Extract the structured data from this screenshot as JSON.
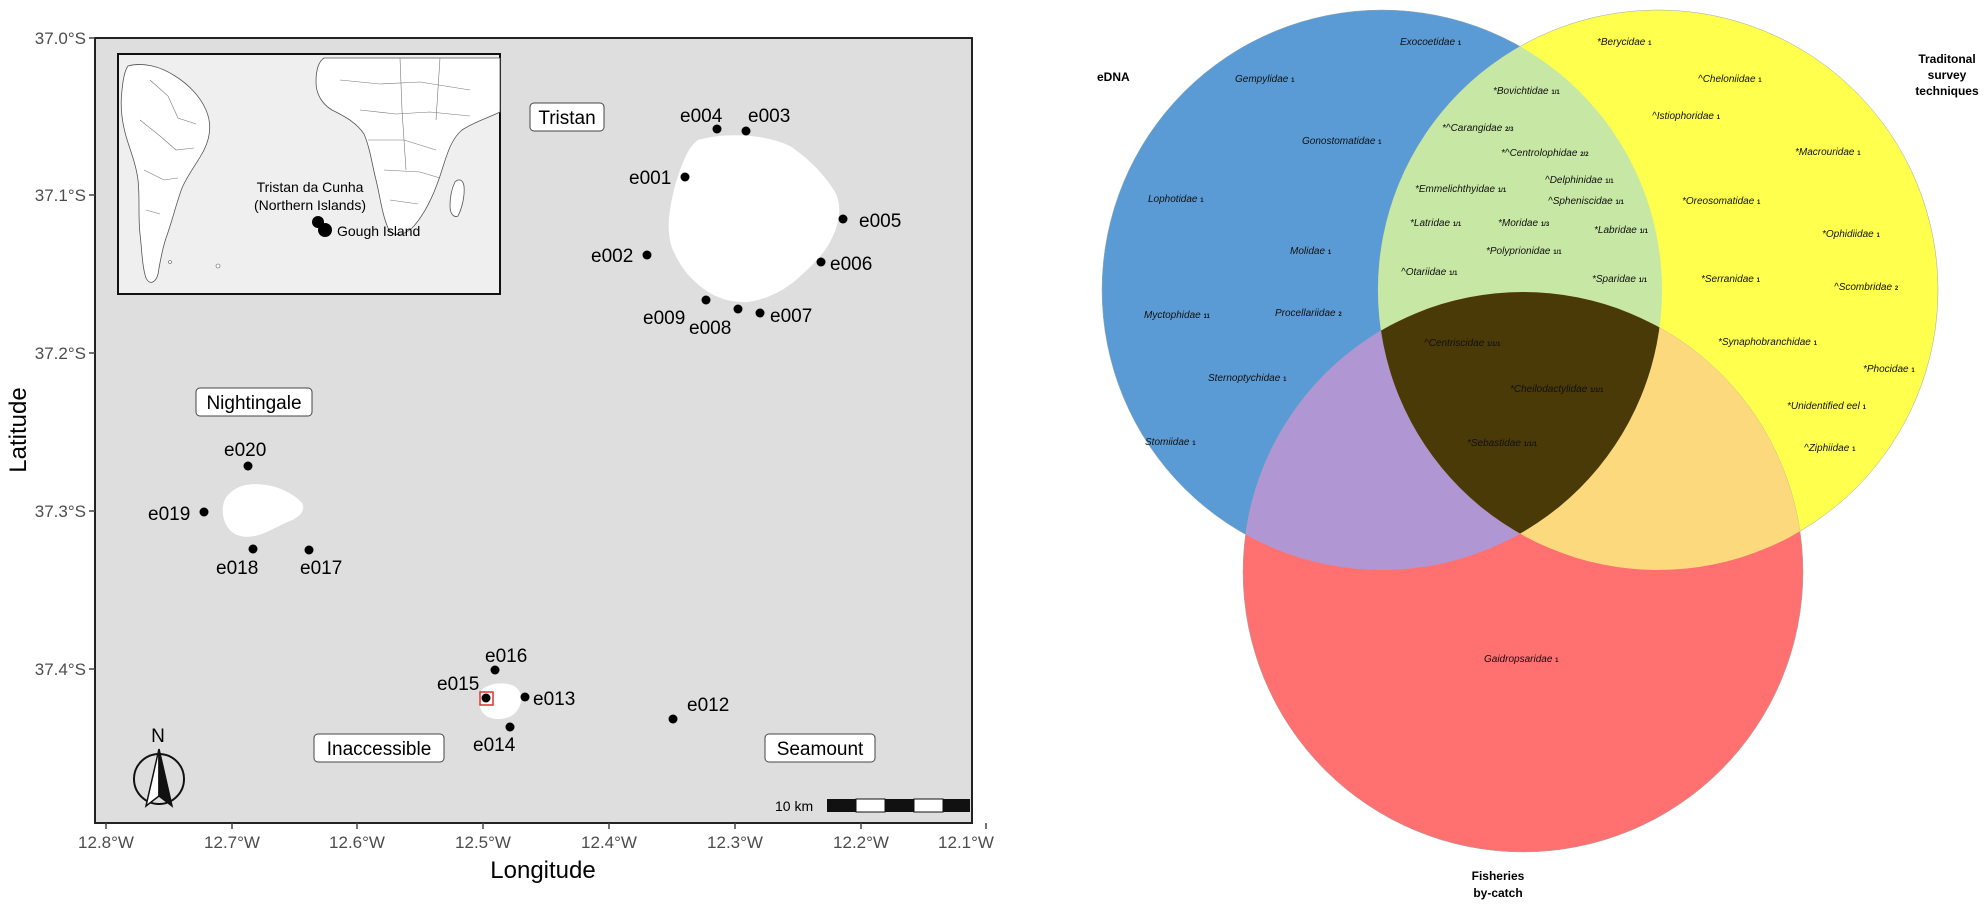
{
  "map": {
    "x_axis_title": "Longitude",
    "y_axis_title": "Latitude",
    "x_ticks": [
      "12.8°W",
      "12.7°W",
      "12.6°W",
      "12.5°W",
      "12.4°W",
      "12.3°W",
      "12.2°W",
      "12.1°W"
    ],
    "y_ticks": [
      "37.0°S",
      "37.1°S",
      "37.2°S",
      "37.3°S",
      "37.4°S"
    ],
    "regions": {
      "tristan": "Tristan",
      "nightingale": "Nightingale",
      "inaccessible": "Inaccessible",
      "seamount": "Seamount"
    },
    "sites": [
      {
        "id": "e001",
        "label": "e001"
      },
      {
        "id": "e002",
        "label": "e002"
      },
      {
        "id": "e003",
        "label": "e003"
      },
      {
        "id": "e004",
        "label": "e004"
      },
      {
        "id": "e005",
        "label": "e005"
      },
      {
        "id": "e006",
        "label": "e006"
      },
      {
        "id": "e007",
        "label": "e007"
      },
      {
        "id": "e008",
        "label": "e008"
      },
      {
        "id": "e009",
        "label": "e009"
      },
      {
        "id": "e012",
        "label": "e012"
      },
      {
        "id": "e013",
        "label": "e013"
      },
      {
        "id": "e014",
        "label": "e014"
      },
      {
        "id": "e015",
        "label": "e015"
      },
      {
        "id": "e016",
        "label": "e016"
      },
      {
        "id": "e017",
        "label": "e017"
      },
      {
        "id": "e018",
        "label": "e018"
      },
      {
        "id": "e019",
        "label": "e019"
      },
      {
        "id": "e020",
        "label": "e020"
      }
    ],
    "inset": {
      "label_tristan_line1": "Tristan da Cunha",
      "label_tristan_line2": "(Northern Islands)",
      "label_gough": "Gough Island"
    },
    "north_label": "N",
    "scale_label": "10 km"
  },
  "venn": {
    "set_edna": "eDNA",
    "set_trad_line1": "Traditonal",
    "set_trad_line2": "survey",
    "set_trad_line3": "techniques",
    "set_fish_line1": "Fisheries",
    "set_fish_line2": "by-catch",
    "colors": {
      "edna": "#5b9bd5",
      "traditional": "#ffff4d",
      "fisheries": "#ff7070"
    },
    "edna_only": [
      {
        "name": "Exocoetidae",
        "n": "1"
      },
      {
        "name": "Gempylidae",
        "n": "1"
      },
      {
        "name": "Gonostomatidae",
        "n": "1"
      },
      {
        "name": "Lophotidae",
        "n": "1"
      },
      {
        "name": "Molidae",
        "n": "1"
      },
      {
        "name": "Myctophidae",
        "n": "11"
      },
      {
        "name": "Procellariidae",
        "n": "2"
      },
      {
        "name": "Sternoptychidae",
        "n": "1"
      },
      {
        "name": "Stomiidae",
        "n": "1"
      }
    ],
    "edna_traditional": [
      {
        "name": "*Bovichtidae",
        "n": "1/1"
      },
      {
        "name": "*^Carangidae",
        "n": "2/3"
      },
      {
        "name": "*^Centrolophidae",
        "n": "2/2"
      },
      {
        "name": "^Delphinidae",
        "n": "1/1"
      },
      {
        "name": "*Emmelichthyidae",
        "n": "1/1"
      },
      {
        "name": "^Spheniscidae",
        "n": "1/1"
      },
      {
        "name": "*Latridae",
        "n": "1/1"
      },
      {
        "name": "*Moridae",
        "n": "1/3"
      },
      {
        "name": "*Labridae",
        "n": "1/1"
      },
      {
        "name": "*Polyprionidae",
        "n": "1/1"
      },
      {
        "name": "^Otariidae",
        "n": "1/1"
      },
      {
        "name": "*Sparidae",
        "n": "1/1"
      }
    ],
    "all_three": [
      {
        "name": "^Centriscidae",
        "n": "1/1/1"
      },
      {
        "name": "*Cheilodactylidae",
        "n": "1/1/1"
      },
      {
        "name": "*Sebastidae",
        "n": "1/1/1"
      }
    ],
    "traditional_only": [
      {
        "name": "*Berycidae",
        "n": "1"
      },
      {
        "name": "^Cheloniidae",
        "n": "1"
      },
      {
        "name": "^Istiophoridae",
        "n": "1"
      },
      {
        "name": "*Macrouridae",
        "n": "1"
      },
      {
        "name": "*Oreosomatidae",
        "n": "1"
      },
      {
        "name": "*Ophidiidae",
        "n": "1"
      },
      {
        "name": "*Serranidae",
        "n": "1"
      },
      {
        "name": "^Scombridae",
        "n": "2"
      },
      {
        "name": "*Synaphobranchidae",
        "n": "1"
      },
      {
        "name": "*Phocidae",
        "n": "1"
      },
      {
        "name": "*Unidentified eel",
        "n": "1"
      },
      {
        "name": "^Ziphiidae",
        "n": "1"
      }
    ],
    "fisheries_only": [
      {
        "name": "Gaidropsaridae",
        "n": "1"
      }
    ]
  }
}
